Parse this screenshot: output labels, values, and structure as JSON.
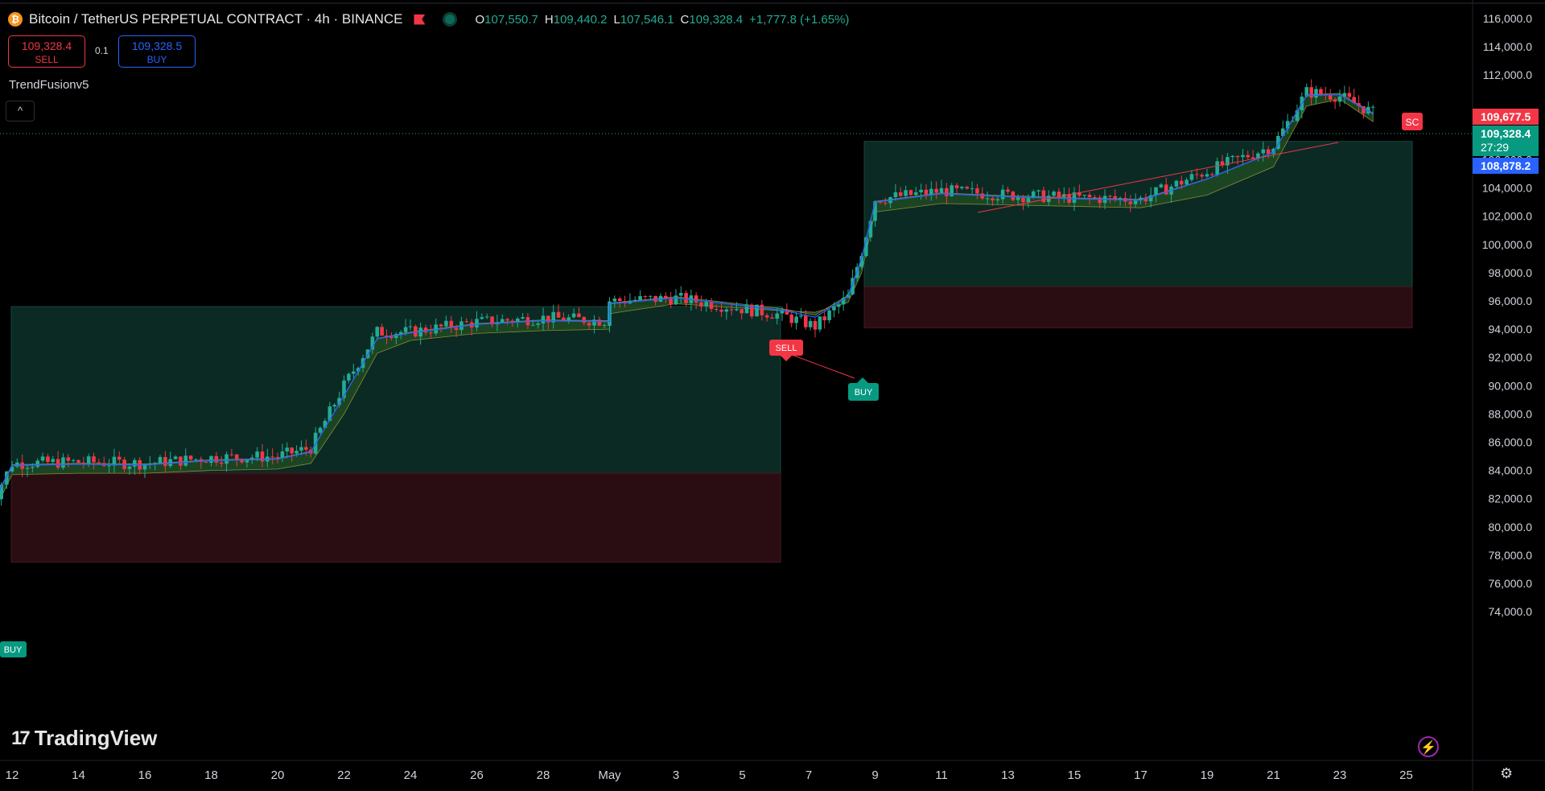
{
  "header": {
    "symbol_title": "Bitcoin / TetherUS PERPETUAL CONTRACT · 4h · BINANCE",
    "coin_glyph": "₿",
    "ohlc": [
      {
        "key": "O",
        "value": "107,550.7"
      },
      {
        "key": "H",
        "value": "109,440.2"
      },
      {
        "key": "L",
        "value": "107,546.1"
      },
      {
        "key": "C",
        "value": "109,328.4"
      }
    ],
    "change": "+1,777.8 (+1.65%)"
  },
  "trade": {
    "sell_price": "109,328.4",
    "sell_label": "SELL",
    "spread": "0.1",
    "buy_price": "109,328.5",
    "buy_label": "BUY"
  },
  "indicator": {
    "name": "TrendFusionv5",
    "collapse_glyph": "^"
  },
  "price_scale": {
    "labels": [
      "116,000.0",
      "114,000.0",
      "112,000.0",
      "106,000.0",
      "104,000.0",
      "102,000.0",
      "100,000.0",
      "98,000.0",
      "96,000.0",
      "94,000.0",
      "92,000.0",
      "90,000.0",
      "88,000.0",
      "86,000.0",
      "84,000.0",
      "82,000.0",
      "80,000.0",
      "78,000.0",
      "76,000.0",
      "74,000.0"
    ],
    "tag_high": "109,677.5",
    "tag_last": "109,328.4",
    "tag_countdown": "27:29",
    "tag_low": "108,878.2"
  },
  "time_scale": {
    "labels": [
      "12",
      "14",
      "16",
      "18",
      "20",
      "22",
      "24",
      "26",
      "28",
      "May",
      "3",
      "5",
      "7",
      "9",
      "11",
      "13",
      "15",
      "17",
      "19",
      "21",
      "23",
      "25"
    ]
  },
  "signals": {
    "buy_1": "BUY",
    "sell_1": "SELL",
    "buy_2": "BUY",
    "sc": "SC"
  },
  "branding": {
    "logo_mark": "17",
    "logo_text": "TradingView"
  },
  "colors": {
    "up": "#22ab94",
    "down": "#f23645",
    "accent": "#2962ff",
    "zone_green": "#0b2a24",
    "zone_red": "#2a0d12",
    "band": "#1f4a22"
  },
  "chart_data": {
    "type": "candlestick",
    "symbol": "BTCUSDT.P",
    "timeframe": "4h",
    "ylim": [
      73000,
      117000
    ],
    "x": [
      "Apr 11",
      "Apr 12",
      "Apr 14",
      "Apr 16",
      "Apr 18",
      "Apr 20",
      "Apr 21",
      "Apr 22",
      "Apr 23",
      "Apr 24",
      "Apr 26",
      "Apr 28",
      "Apr 30",
      "May 1",
      "May 3",
      "May 5",
      "May 6",
      "May 7",
      "May 8",
      "May 9",
      "May 11",
      "May 13",
      "May 15",
      "May 17",
      "May 19",
      "May 21",
      "May 22",
      "May 23",
      "May 24"
    ],
    "close": [
      80200,
      84500,
      84600,
      84500,
      84900,
      85000,
      85600,
      90000,
      93800,
      93800,
      94500,
      94800,
      94600,
      96000,
      96200,
      95000,
      94200,
      96300,
      99500,
      103200,
      103800,
      103500,
      103300,
      103200,
      105200,
      107000,
      110800,
      110500,
      109328
    ],
    "trail": [
      79000,
      83700,
      83800,
      83800,
      84000,
      84100,
      84500,
      88000,
      92300,
      93200,
      93700,
      93900,
      94000,
      95100,
      95800,
      95300,
      95200,
      95900,
      98000,
      102300,
      102900,
      102800,
      102700,
      102600,
      103500,
      105500,
      109800,
      110300,
      108700
    ],
    "zones": [
      {
        "kind": "target",
        "from": "Apr 11",
        "to": "May 5",
        "low": 83800,
        "high": 95600
      },
      {
        "kind": "stop",
        "from": "Apr 11",
        "to": "May 5",
        "low": 77500,
        "high": 83800
      },
      {
        "kind": "target",
        "from": "May 7",
        "to": "May 24",
        "low": 97000,
        "high": 107300
      },
      {
        "kind": "stop",
        "from": "May 7",
        "to": "May 24",
        "low": 94100,
        "high": 97000
      }
    ],
    "last_price": 109328.4
  }
}
